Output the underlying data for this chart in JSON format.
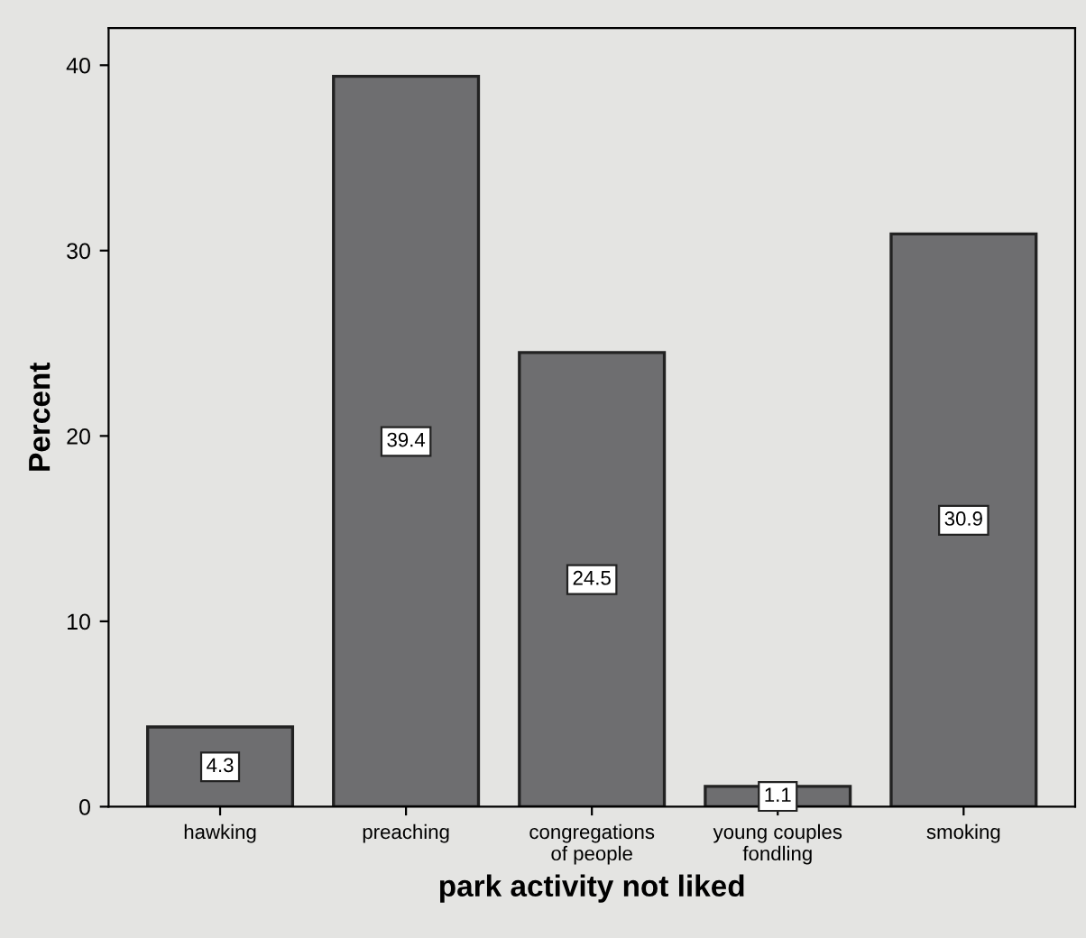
{
  "chart_data": {
    "type": "bar",
    "xlabel": "park activity not liked",
    "ylabel": "Percent",
    "categories": [
      "hawking",
      "preaching",
      "congregations\nof people",
      "young couples\nfondling",
      "smoking"
    ],
    "values": [
      4.3,
      39.4,
      24.5,
      1.1,
      30.9
    ],
    "color": "#6e6e70",
    "data_labels": true,
    "ylim": [
      0,
      42
    ],
    "yticks": [
      0,
      10,
      20,
      30,
      40
    ],
    "grid": false,
    "legend": false
  }
}
